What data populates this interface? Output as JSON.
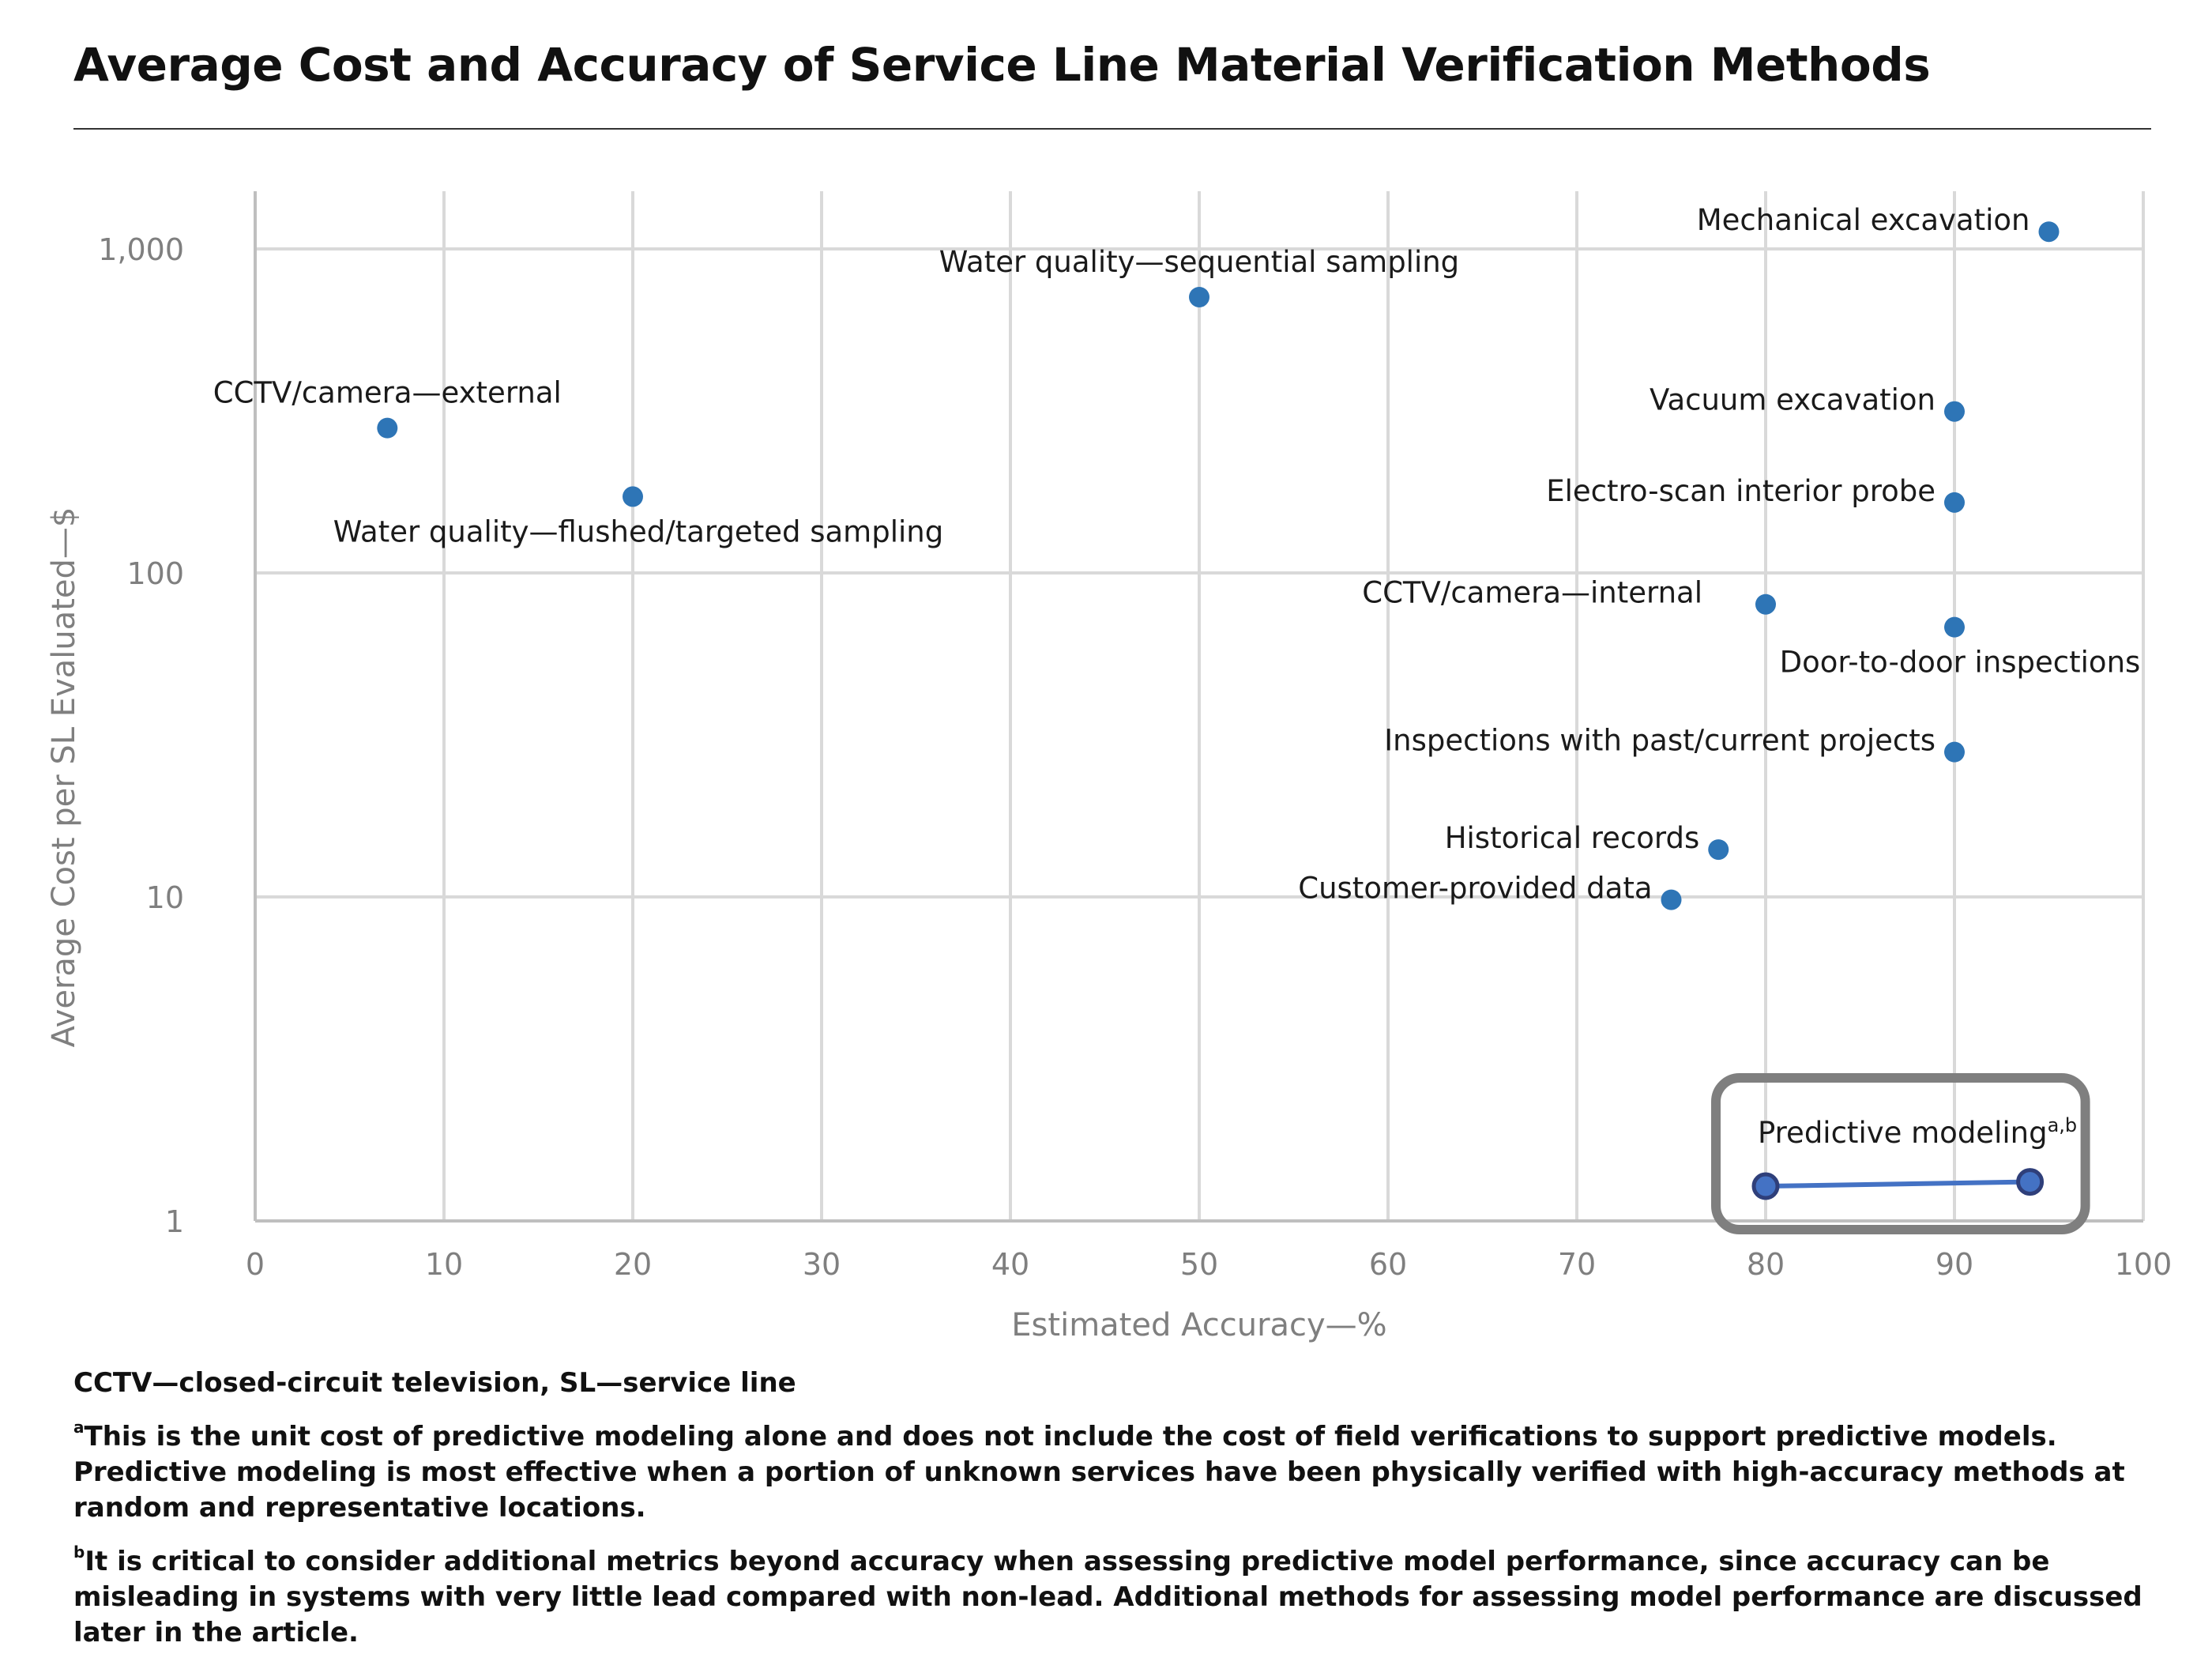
{
  "title": "Average Cost and Accuracy of Service Line Material Verification Methods",
  "chart_data": {
    "type": "scatter",
    "title": "",
    "xlabel": "Estimated Accuracy—%",
    "ylabel": "Average Cost per SL Evaluated—$",
    "xlim": [
      0,
      100
    ],
    "ylim": [
      1,
      3000
    ],
    "yscale": "log",
    "x_ticks": [
      0,
      10,
      20,
      30,
      40,
      50,
      60,
      70,
      80,
      90,
      100
    ],
    "y_ticks": [
      {
        "value": 1,
        "label": "1"
      },
      {
        "value": 10,
        "label": "10"
      },
      {
        "value": 100,
        "label": "100"
      },
      {
        "value": 1000,
        "label": "1,000"
      }
    ],
    "grid": true,
    "marker_color": "#2e75b6",
    "points": [
      {
        "label": "Mechanical excavation",
        "x": 95,
        "y": 1130,
        "anchor": "left"
      },
      {
        "label": "Water quality—sequential sampling",
        "x": 50,
        "y": 710,
        "anchor": "above"
      },
      {
        "label": "CCTV/camera—external",
        "x": 7,
        "y": 280,
        "anchor": "above"
      },
      {
        "label": "Vacuum excavation",
        "x": 90,
        "y": 315,
        "anchor": "left"
      },
      {
        "label": "Water quality—flushed/targeted sampling",
        "x": 20,
        "y": 172,
        "anchor": "below"
      },
      {
        "label": "Electro-scan interior probe",
        "x": 90,
        "y": 165,
        "anchor": "left"
      },
      {
        "label": "CCTV/camera—internal",
        "x": 80,
        "y": 80,
        "anchor": "above-left"
      },
      {
        "label": "Door-to-door inspections",
        "x": 90,
        "y": 68,
        "anchor": "below"
      },
      {
        "label": "Inspections with past/current projects",
        "x": 90,
        "y": 28,
        "anchor": "left"
      },
      {
        "label": "Historical records",
        "x": 77.5,
        "y": 14,
        "anchor": "left"
      },
      {
        "label": "Customer-provided data",
        "x": 75,
        "y": 9.8,
        "anchor": "left"
      }
    ],
    "range_series": {
      "label": "Predictive modeling",
      "superscript": "a,b",
      "points": [
        {
          "x": 80,
          "y": 1.28
        },
        {
          "x": 94,
          "y": 1.32
        }
      ]
    }
  },
  "footnotes": {
    "abbrev": "CCTV—closed-circuit television, SL—service line",
    "a_mark": "a",
    "a_text": "This is the unit cost of predictive modeling alone and does not include the cost of field verifications to support predictive models. Predictive modeling is most effective when a portion of unknown services have been physically verified with high-accuracy methods at random and representative locations.",
    "b_mark": "b",
    "b_text": "It is critical to consider additional metrics beyond accuracy when assessing predictive model performance, since accuracy can be misleading in systems with very little lead compared with non-lead. Additional methods for assessing model performance are discussed later in the article."
  }
}
